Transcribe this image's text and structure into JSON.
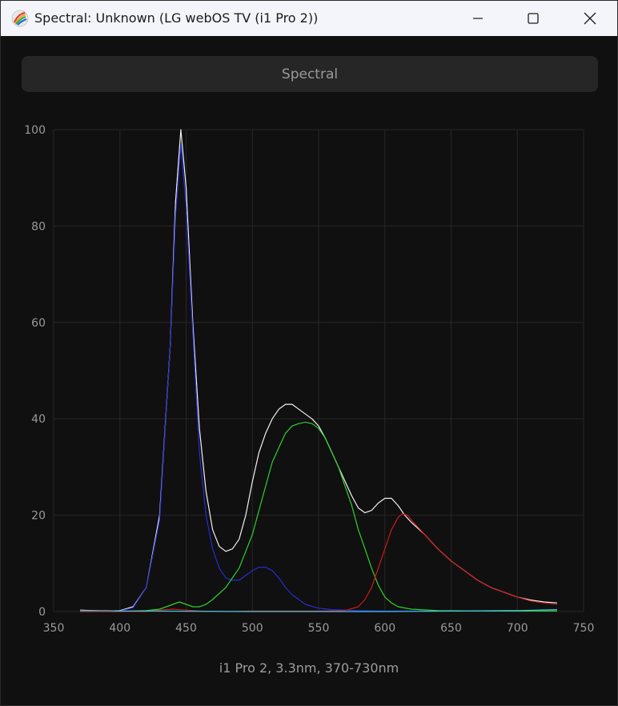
{
  "window": {
    "title": "Spectral: Unknown (LG webOS TV (i1 Pro 2))",
    "controls": [
      "minimize",
      "maximize",
      "close"
    ]
  },
  "tab": {
    "label": "Spectral"
  },
  "colors": {
    "background": "#101010",
    "grid": "#262626",
    "axis_text": "#9a9a9a",
    "white": "#f2f2f2",
    "red": "#d01818",
    "green": "#2fd02f",
    "blue": "#2a2ad6",
    "cyan": "#40c8e0"
  },
  "chart_data": {
    "type": "line",
    "title": "",
    "xlabel": "i1 Pro 2, 3.3nm, 370-730nm",
    "ylabel": "",
    "xlim": [
      350,
      750
    ],
    "ylim": [
      0,
      100
    ],
    "xticks": [
      350,
      400,
      450,
      500,
      550,
      600,
      650,
      700,
      750
    ],
    "yticks": [
      0,
      20,
      40,
      60,
      80,
      100
    ],
    "grid": true,
    "series": [
      {
        "color": "#f2f2f2",
        "points": [
          [
            370,
            0.3
          ],
          [
            390,
            0.1
          ],
          [
            400,
            0.2
          ],
          [
            410,
            1
          ],
          [
            420,
            5
          ],
          [
            430,
            20
          ],
          [
            438,
            55
          ],
          [
            442,
            85
          ],
          [
            446,
            100
          ],
          [
            450,
            88
          ],
          [
            455,
            60
          ],
          [
            460,
            38
          ],
          [
            465,
            25
          ],
          [
            470,
            17
          ],
          [
            475,
            13.5
          ],
          [
            480,
            12.5
          ],
          [
            485,
            13
          ],
          [
            490,
            15
          ],
          [
            495,
            20
          ],
          [
            500,
            27
          ],
          [
            505,
            33
          ],
          [
            510,
            37
          ],
          [
            515,
            40
          ],
          [
            520,
            42
          ],
          [
            525,
            43
          ],
          [
            530,
            43
          ],
          [
            535,
            42
          ],
          [
            540,
            41
          ],
          [
            545,
            40
          ],
          [
            550,
            38.5
          ],
          [
            555,
            36
          ],
          [
            560,
            33
          ],
          [
            565,
            30
          ],
          [
            570,
            27
          ],
          [
            575,
            24
          ],
          [
            580,
            21.5
          ],
          [
            585,
            20.5
          ],
          [
            590,
            21
          ],
          [
            595,
            22.5
          ],
          [
            600,
            23.5
          ],
          [
            605,
            23.5
          ],
          [
            610,
            22
          ],
          [
            615,
            20
          ],
          [
            620,
            18.5
          ],
          [
            630,
            16
          ],
          [
            640,
            13
          ],
          [
            650,
            10.5
          ],
          [
            660,
            8.5
          ],
          [
            670,
            6.5
          ],
          [
            680,
            5
          ],
          [
            690,
            4
          ],
          [
            700,
            3
          ],
          [
            710,
            2.4
          ],
          [
            720,
            2
          ],
          [
            730,
            1.8
          ]
        ]
      },
      {
        "color": "#2a2ad6",
        "points": [
          [
            370,
            0.2
          ],
          [
            390,
            0.1
          ],
          [
            400,
            0.1
          ],
          [
            410,
            0.8
          ],
          [
            420,
            5
          ],
          [
            430,
            19
          ],
          [
            438,
            55
          ],
          [
            442,
            82
          ],
          [
            446,
            97
          ],
          [
            450,
            84
          ],
          [
            455,
            58
          ],
          [
            460,
            33
          ],
          [
            465,
            20
          ],
          [
            470,
            13
          ],
          [
            475,
            9
          ],
          [
            480,
            7
          ],
          [
            485,
            6.5
          ],
          [
            490,
            6.5
          ],
          [
            495,
            7.5
          ],
          [
            500,
            8.5
          ],
          [
            505,
            9.2
          ],
          [
            510,
            9.2
          ],
          [
            515,
            8.5
          ],
          [
            520,
            7
          ],
          [
            525,
            5
          ],
          [
            530,
            3.5
          ],
          [
            540,
            1.5
          ],
          [
            550,
            0.7
          ],
          [
            560,
            0.4
          ],
          [
            570,
            0.3
          ],
          [
            580,
            0.2
          ],
          [
            600,
            0.1
          ],
          [
            650,
            0.1
          ],
          [
            700,
            0.2
          ],
          [
            730,
            0.3
          ]
        ]
      },
      {
        "color": "#2fd02f",
        "points": [
          [
            370,
            0
          ],
          [
            400,
            0
          ],
          [
            420,
            0.2
          ],
          [
            430,
            0.5
          ],
          [
            440,
            1.5
          ],
          [
            445,
            2
          ],
          [
            450,
            1.5
          ],
          [
            455,
            1
          ],
          [
            460,
            1
          ],
          [
            465,
            1.5
          ],
          [
            470,
            2.5
          ],
          [
            480,
            5
          ],
          [
            490,
            9
          ],
          [
            500,
            16
          ],
          [
            505,
            21
          ],
          [
            510,
            26
          ],
          [
            515,
            31
          ],
          [
            520,
            34
          ],
          [
            525,
            37
          ],
          [
            530,
            38.5
          ],
          [
            535,
            39
          ],
          [
            540,
            39.3
          ],
          [
            545,
            39
          ],
          [
            550,
            38
          ],
          [
            555,
            36
          ],
          [
            560,
            33
          ],
          [
            565,
            30
          ],
          [
            570,
            26
          ],
          [
            575,
            22
          ],
          [
            580,
            17
          ],
          [
            585,
            13
          ],
          [
            590,
            9
          ],
          [
            595,
            5.5
          ],
          [
            600,
            3
          ],
          [
            605,
            1.8
          ],
          [
            610,
            1
          ],
          [
            620,
            0.5
          ],
          [
            640,
            0.2
          ],
          [
            680,
            0.1
          ],
          [
            730,
            0.1
          ]
        ]
      },
      {
        "color": "#d01818",
        "points": [
          [
            370,
            0
          ],
          [
            420,
            0
          ],
          [
            430,
            0.3
          ],
          [
            440,
            0.5
          ],
          [
            450,
            0.3
          ],
          [
            460,
            0.1
          ],
          [
            480,
            0
          ],
          [
            500,
            0.1
          ],
          [
            550,
            0.1
          ],
          [
            570,
            0.2
          ],
          [
            580,
            1
          ],
          [
            585,
            2.5
          ],
          [
            590,
            5
          ],
          [
            595,
            9
          ],
          [
            600,
            13
          ],
          [
            605,
            17
          ],
          [
            610,
            19.5
          ],
          [
            613,
            20.3
          ],
          [
            617,
            20
          ],
          [
            620,
            19
          ],
          [
            630,
            16
          ],
          [
            640,
            13
          ],
          [
            650,
            10.5
          ],
          [
            660,
            8.5
          ],
          [
            670,
            6.5
          ],
          [
            680,
            5
          ],
          [
            690,
            4
          ],
          [
            700,
            3
          ],
          [
            710,
            2.2
          ],
          [
            720,
            1.8
          ],
          [
            730,
            1.5
          ]
        ]
      },
      {
        "color": "#40c8e0",
        "points": [
          [
            370,
            0.2
          ],
          [
            390,
            0.2
          ],
          [
            400,
            0.1
          ],
          [
            420,
            0.1
          ],
          [
            500,
            0
          ],
          [
            600,
            0
          ],
          [
            650,
            0.1
          ],
          [
            700,
            0.2
          ],
          [
            730,
            0.4
          ]
        ]
      }
    ]
  }
}
